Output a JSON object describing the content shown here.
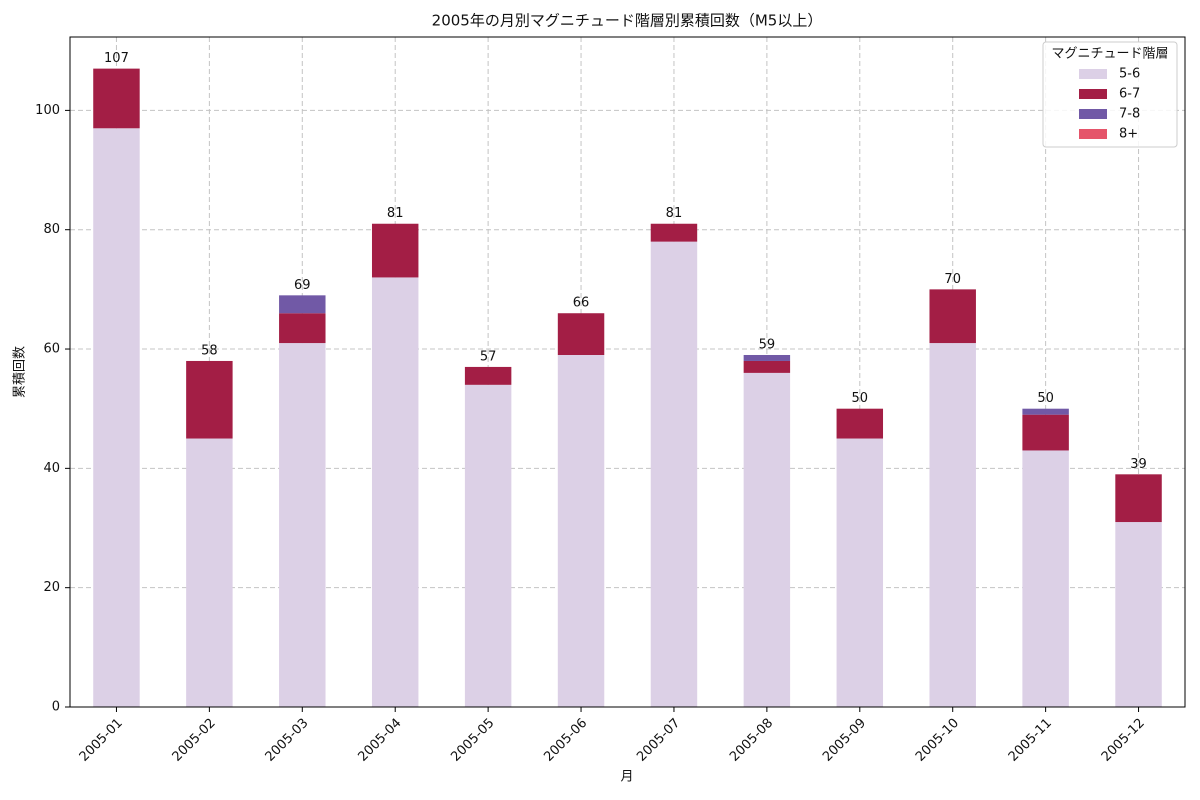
{
  "chart_data": {
    "type": "stacked_bar",
    "title": "2005年の月別マグニチュード階層別累積回数（M5以上）",
    "x_label": "月",
    "y_label": "累積回数",
    "categories": [
      "2005-01",
      "2005-02",
      "2005-03",
      "2005-04",
      "2005-05",
      "2005-06",
      "2005-07",
      "2005-08",
      "2005-09",
      "2005-10",
      "2005-11",
      "2005-12"
    ],
    "series": [
      {
        "name": "5-6",
        "color": "#dcd0e6",
        "values": [
          97,
          45,
          61,
          72,
          54,
          59,
          78,
          56,
          45,
          61,
          43,
          31
        ]
      },
      {
        "name": "6-7",
        "color": "#a31e45",
        "values": [
          10,
          13,
          5,
          9,
          3,
          7,
          3,
          2,
          5,
          9,
          6,
          8
        ]
      },
      {
        "name": "7-8",
        "color": "#7159a6",
        "values": [
          0,
          0,
          3,
          0,
          0,
          0,
          0,
          1,
          0,
          0,
          1,
          0
        ]
      },
      {
        "name": "8+",
        "color": "#e5546a",
        "values": [
          0,
          0,
          0,
          0,
          0,
          0,
          0,
          0,
          0,
          0,
          0,
          0
        ]
      }
    ],
    "totals": [
      107,
      58,
      69,
      81,
      57,
      66,
      81,
      59,
      50,
      70,
      50,
      39
    ],
    "legend_title": "マグニチュード階層",
    "legend_position": "upper right",
    "ylim": [
      0,
      112.3
    ],
    "yticks": [
      0,
      20,
      40,
      60,
      80,
      100
    ],
    "grid": true
  }
}
